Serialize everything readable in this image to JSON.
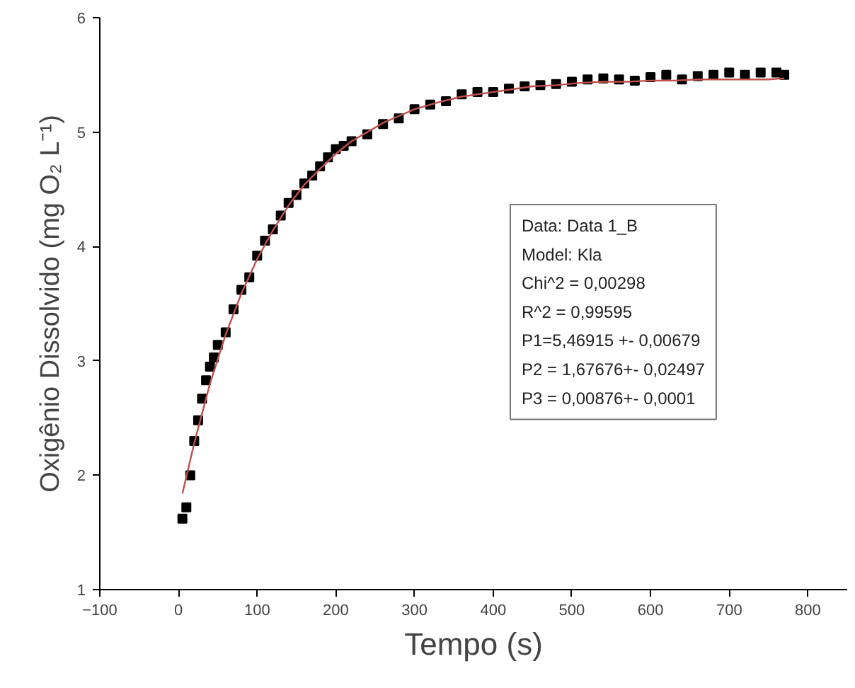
{
  "chart_data": {
    "type": "scatter",
    "xlabel": "Tempo (s)",
    "ylabel": "Oxigênio Dissolvido (mg O₂ L⁻¹)",
    "xlim": [
      -100,
      850
    ],
    "ylim": [
      1,
      6
    ],
    "xticks": [
      -100,
      0,
      100,
      200,
      300,
      400,
      500,
      600,
      700,
      800
    ],
    "yticks": [
      1,
      2,
      3,
      4,
      5,
      6
    ],
    "grid": false,
    "series": [
      {
        "marker": "square",
        "color": "#000000",
        "x": [
          5,
          10,
          15,
          20,
          25,
          30,
          35,
          40,
          45,
          50,
          60,
          70,
          80,
          90,
          100,
          110,
          120,
          130,
          140,
          150,
          160,
          170,
          180,
          190,
          200,
          210,
          220,
          240,
          260,
          280,
          300,
          320,
          340,
          360,
          380,
          400,
          420,
          440,
          460,
          480,
          500,
          520,
          540,
          560,
          580,
          600,
          620,
          640,
          660,
          680,
          700,
          720,
          740,
          760,
          770
        ],
        "values": [
          1.62,
          1.72,
          2.0,
          2.3,
          2.48,
          2.67,
          2.83,
          2.95,
          3.03,
          3.14,
          3.25,
          3.45,
          3.62,
          3.73,
          3.92,
          4.05,
          4.15,
          4.27,
          4.38,
          4.45,
          4.55,
          4.62,
          4.7,
          4.78,
          4.85,
          4.88,
          4.92,
          4.98,
          5.07,
          5.12,
          5.2,
          5.24,
          5.27,
          5.33,
          5.35,
          5.35,
          5.38,
          5.4,
          5.41,
          5.42,
          5.44,
          5.46,
          5.47,
          5.46,
          5.45,
          5.48,
          5.5,
          5.46,
          5.49,
          5.5,
          5.52,
          5.5,
          5.52,
          5.52,
          5.5
        ]
      },
      {
        "type": "line",
        "color": "#c0504d",
        "line_style": "solid",
        "x": [
          5,
          20,
          40,
          60,
          80,
          100,
          120,
          140,
          160,
          180,
          200,
          220,
          240,
          260,
          280,
          300,
          330,
          360,
          390,
          420,
          450,
          480,
          510,
          540,
          570,
          600,
          630,
          660,
          690,
          720,
          750,
          770
        ],
        "values": [
          1.84,
          2.28,
          2.8,
          3.23,
          3.59,
          3.89,
          4.14,
          4.36,
          4.54,
          4.68,
          4.81,
          4.92,
          5.0,
          5.08,
          5.14,
          5.2,
          5.26,
          5.31,
          5.34,
          5.37,
          5.4,
          5.41,
          5.43,
          5.44,
          5.44,
          5.45,
          5.45,
          5.46,
          5.46,
          5.46,
          5.46,
          5.47
        ]
      }
    ],
    "annotations": [
      "Data: Data 1_B",
      "Model: Kla",
      "Chi^2 = 0,00298",
      "R^2 = 0,99595",
      "P1=5,46915 +- 0,00679",
      "P2 = 1,67676+- 0,02497",
      "P3 = 0,00876+- 0,0001"
    ]
  }
}
